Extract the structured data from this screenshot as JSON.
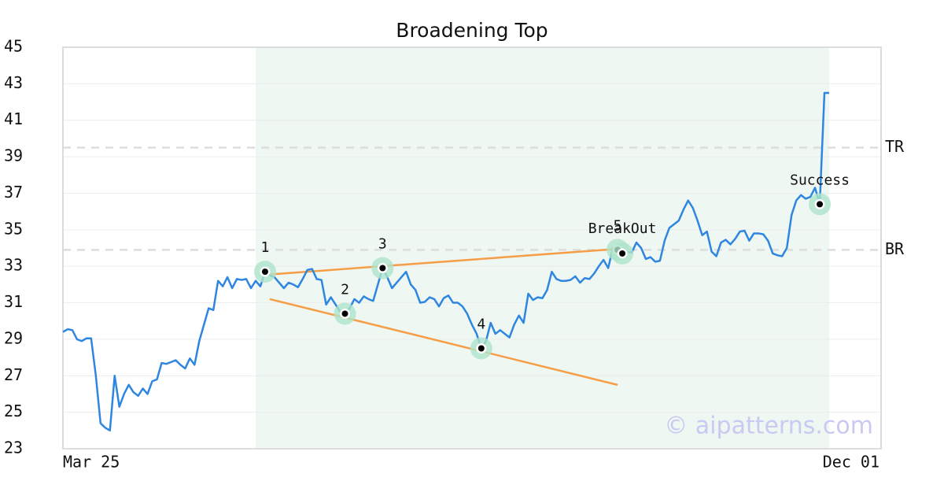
{
  "chart_data": {
    "type": "line",
    "title": "Broadening Top",
    "color": "#2f86e0",
    "grid": true,
    "ylim": [
      23,
      45
    ],
    "yticks": [
      23,
      25,
      27,
      29,
      31,
      33,
      35,
      37,
      39,
      41,
      43,
      45
    ],
    "categories": [
      "Mar 25",
      null,
      null,
      null,
      null,
      null,
      null,
      null,
      null,
      null,
      null,
      null,
      null,
      null,
      null,
      null,
      null,
      null,
      null,
      null,
      null,
      null,
      null,
      null,
      null,
      null,
      null,
      null,
      null,
      null,
      null,
      null,
      null,
      null,
      null,
      null,
      null,
      null,
      null,
      null,
      null,
      null,
      null,
      null,
      null,
      null,
      null,
      null,
      null,
      null,
      null,
      null,
      null,
      null,
      null,
      null,
      null,
      null,
      null,
      null,
      null,
      null,
      null,
      null,
      null,
      null,
      null,
      null,
      null,
      null,
      null,
      null,
      null,
      null,
      null,
      null,
      null,
      null,
      null,
      null,
      null,
      null,
      null,
      null,
      null,
      null,
      null,
      null,
      null,
      null,
      null,
      null,
      null,
      null,
      null,
      null,
      null,
      null,
      null,
      null,
      null,
      null,
      null,
      null,
      null,
      null,
      null,
      null,
      null,
      null,
      null,
      null,
      null,
      null,
      null,
      null,
      null,
      null,
      null,
      null,
      null,
      null,
      null,
      null,
      null,
      null,
      null,
      null,
      null,
      null,
      null,
      null,
      null,
      null,
      null,
      null,
      null,
      null,
      null,
      null,
      null,
      null,
      null,
      null,
      null,
      null,
      null,
      null,
      null,
      null,
      null,
      null,
      null,
      null,
      null,
      null,
      null,
      null,
      null,
      null,
      null,
      null,
      null,
      "Dec 01"
    ],
    "values": [
      29.4,
      29.55,
      29.5,
      29.0,
      28.9,
      29.05,
      29.05,
      27.0,
      24.4,
      24.15,
      24.0,
      27.0,
      25.3,
      26.0,
      26.5,
      26.1,
      25.9,
      26.3,
      26.0,
      26.7,
      26.8,
      27.7,
      27.65,
      27.75,
      27.85,
      27.6,
      27.4,
      27.95,
      27.6,
      28.9,
      29.8,
      30.7,
      30.6,
      32.2,
      31.9,
      32.4,
      31.8,
      32.3,
      32.25,
      32.3,
      31.8,
      32.2,
      31.9,
      32.7,
      32.5,
      32.4,
      32.1,
      31.8,
      32.1,
      32.0,
      31.85,
      32.3,
      32.8,
      32.85,
      32.3,
      32.25,
      30.9,
      31.3,
      30.9,
      30.5,
      30.4,
      30.7,
      31.2,
      31.0,
      31.35,
      31.2,
      31.1,
      32.0,
      32.9,
      32.4,
      31.8,
      32.1,
      32.4,
      32.7,
      32.0,
      31.7,
      31.0,
      31.05,
      31.3,
      31.2,
      30.8,
      31.25,
      31.4,
      31.0,
      31.0,
      30.8,
      30.4,
      29.8,
      29.3,
      28.5,
      28.9,
      29.9,
      29.3,
      29.5,
      29.3,
      29.1,
      29.8,
      30.3,
      29.9,
      31.5,
      31.15,
      31.3,
      31.25,
      31.7,
      32.7,
      32.3,
      32.2,
      32.2,
      32.25,
      32.45,
      32.1,
      32.35,
      32.3,
      32.6,
      33.0,
      33.35,
      32.9,
      34.0,
      33.9,
      33.7,
      33.8,
      33.75,
      34.3,
      34.0,
      33.4,
      33.5,
      33.25,
      33.3,
      34.4,
      35.1,
      35.3,
      35.5,
      36.1,
      36.6,
      36.2,
      35.5,
      34.7,
      34.9,
      33.8,
      33.55,
      34.3,
      34.45,
      34.2,
      34.5,
      34.9,
      34.95,
      34.4,
      34.8,
      34.8,
      34.75,
      34.4,
      33.7,
      33.6,
      33.55,
      34.0,
      35.8,
      36.6,
      36.9,
      36.7,
      36.8,
      37.3,
      36.4,
      42.5,
      42.5
    ],
    "highlight": {
      "start": 41,
      "end": 163,
      "color": "#eef7f2"
    },
    "levels": [
      {
        "label": "TR",
        "value": 39.5
      },
      {
        "label": "BR",
        "value": 33.9
      }
    ],
    "trendlines": [
      {
        "start": {
          "index": 44,
          "value": 32.55
        },
        "end": {
          "index": 118,
          "value": 33.95
        },
        "color": "#f59e47"
      },
      {
        "start": {
          "index": 44,
          "value": 31.2
        },
        "end": {
          "index": 118,
          "value": 26.5
        },
        "color": "#f59e47"
      }
    ],
    "points": [
      {
        "label": "1",
        "index": 43,
        "value": 32.7
      },
      {
        "label": "2",
        "index": 60,
        "value": 30.4
      },
      {
        "label": "3",
        "index": 68,
        "value": 32.9
      },
      {
        "label": "4",
        "index": 89,
        "value": 28.5
      },
      {
        "label": "5",
        "index": 118,
        "value": 33.9
      },
      {
        "label": "BreakOut",
        "index": 119,
        "value": 33.7
      },
      {
        "label": "Success",
        "index": 161,
        "value": 36.4
      }
    ],
    "watermark": "© aipatterns.com"
  }
}
